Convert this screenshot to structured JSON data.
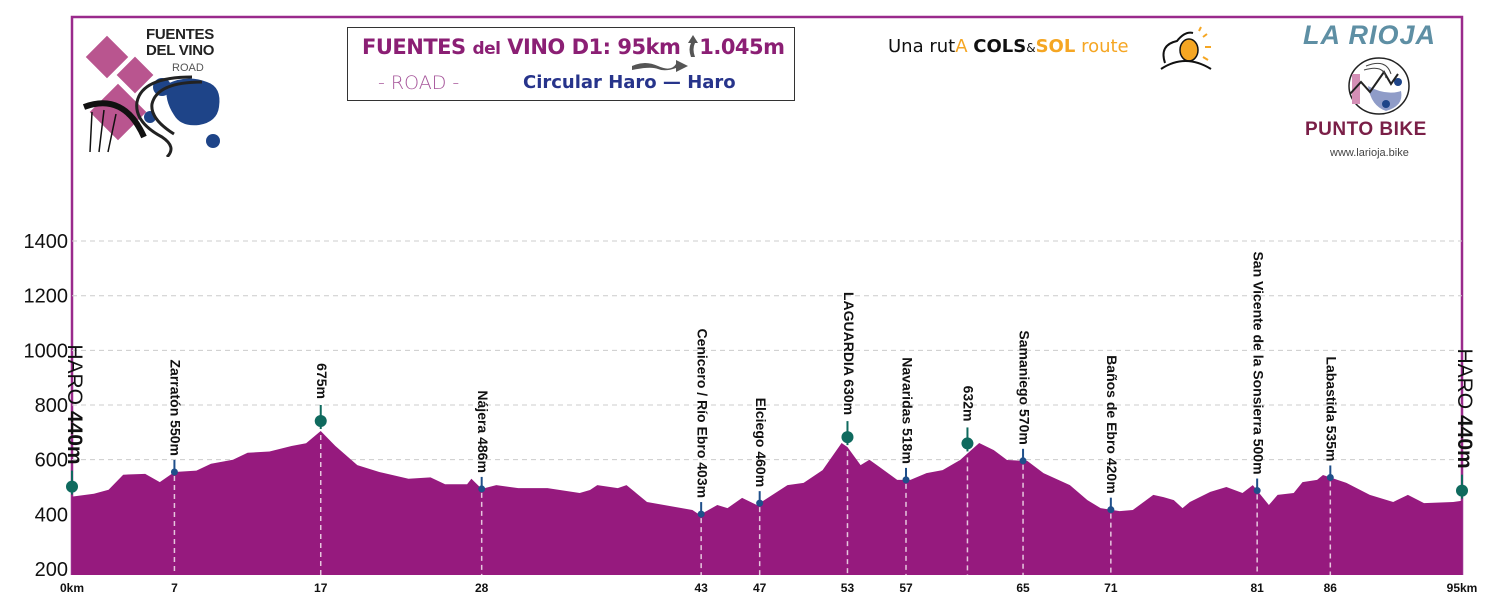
{
  "header": {
    "title_main": "FUENTES",
    "title_del": "del",
    "title_rest": "VINO D1: 95km",
    "title_climb": "1.045m",
    "subtitle_type": "- ROAD -",
    "subtitle_route": "Circular Haro — Haro",
    "icons": [
      "distance-arrow-icon",
      "climb-arrow-icon"
    ]
  },
  "logos": {
    "fuentes_line1": "FUENTES",
    "fuentes_line2": "DEL VINO",
    "fuentes_line3": "ROAD",
    "cols_prefix": "Una rut",
    "cols_a": "A",
    "cols_cols": "COLS",
    "cols_amp": "&",
    "cols_sol": "SOL",
    "cols_route": "route",
    "rioja": "LA RIOJA",
    "punto_bike": "PUNTO BIKE",
    "website": "www.larioja.bike"
  },
  "colors": {
    "fill": "#961a7e",
    "frame": "#9a2a8c",
    "big_marker": "#0f6a5e",
    "small_marker": "#1f4f8a",
    "grid": "#cccccc"
  },
  "chart_data": {
    "type": "area",
    "xlabel": "",
    "ylabel": "",
    "xlim": [
      0,
      95
    ],
    "ylim": [
      178,
      1500
    ],
    "yticks": [
      200,
      400,
      600,
      800,
      1000,
      1200,
      1400
    ],
    "grid": true,
    "xticks": [
      {
        "km": 0,
        "label": "0km"
      },
      {
        "km": 7,
        "label": "7"
      },
      {
        "km": 17,
        "label": "17"
      },
      {
        "km": 28,
        "label": "28"
      },
      {
        "km": 43,
        "label": "43"
      },
      {
        "km": 47,
        "label": "47"
      },
      {
        "km": 53,
        "label": "53"
      },
      {
        "km": 57,
        "label": "57"
      },
      {
        "km": 65,
        "label": "65"
      },
      {
        "km": 71,
        "label": "71"
      },
      {
        "km": 81,
        "label": "81"
      },
      {
        "km": 86,
        "label": "86"
      },
      {
        "km": 95,
        "label": "95km"
      }
    ],
    "profile": [
      [
        0,
        465
      ],
      [
        1.5,
        475
      ],
      [
        2.5,
        490
      ],
      [
        3.5,
        545
      ],
      [
        5,
        548
      ],
      [
        6,
        518
      ],
      [
        7,
        555
      ],
      [
        8.5,
        560
      ],
      [
        9.5,
        585
      ],
      [
        11,
        600
      ],
      [
        12,
        625
      ],
      [
        13.5,
        630
      ],
      [
        15,
        650
      ],
      [
        16,
        660
      ],
      [
        17,
        705
      ],
      [
        18,
        650
      ],
      [
        19.5,
        580
      ],
      [
        21,
        555
      ],
      [
        23,
        530
      ],
      [
        24.5,
        535
      ],
      [
        25.5,
        510
      ],
      [
        27,
        510
      ],
      [
        27.3,
        530
      ],
      [
        28,
        493
      ],
      [
        29,
        507
      ],
      [
        30.5,
        496
      ],
      [
        32.5,
        496
      ],
      [
        34.7,
        478
      ],
      [
        35.4,
        489
      ],
      [
        35.9,
        507
      ],
      [
        37.3,
        496
      ],
      [
        37.9,
        507
      ],
      [
        39.3,
        445
      ],
      [
        42.4,
        416
      ],
      [
        42.9,
        398
      ],
      [
        44.1,
        434
      ],
      [
        44.8,
        423
      ],
      [
        45.8,
        460
      ],
      [
        46.8,
        434
      ],
      [
        48.9,
        507
      ],
      [
        50,
        515
      ],
      [
        51.3,
        562
      ],
      [
        52.6,
        661
      ],
      [
        53,
        646
      ],
      [
        53.9,
        580
      ],
      [
        54.5,
        600
      ],
      [
        55.2,
        573
      ],
      [
        56.4,
        526
      ],
      [
        57.3,
        526
      ],
      [
        58.4,
        551
      ],
      [
        59.5,
        562
      ],
      [
        60.7,
        599
      ],
      [
        62,
        661
      ],
      [
        63,
        635
      ],
      [
        63.9,
        599
      ],
      [
        65.3,
        595
      ],
      [
        66.4,
        551
      ],
      [
        68.2,
        507
      ],
      [
        69.4,
        452
      ],
      [
        70.3,
        423
      ],
      [
        71.6,
        412
      ],
      [
        72.5,
        416
      ],
      [
        73.9,
        471
      ],
      [
        74.6,
        463
      ],
      [
        75.3,
        452
      ],
      [
        75.9,
        423
      ],
      [
        76.4,
        445
      ],
      [
        77.8,
        482
      ],
      [
        78.9,
        500
      ],
      [
        80,
        478
      ],
      [
        80.7,
        507
      ],
      [
        81.8,
        434
      ],
      [
        82.4,
        471
      ],
      [
        83.5,
        478
      ],
      [
        84.1,
        518
      ],
      [
        85.1,
        526
      ],
      [
        85.5,
        544
      ],
      [
        87.1,
        515
      ],
      [
        88.7,
        471
      ],
      [
        90.3,
        445
      ],
      [
        91.3,
        471
      ],
      [
        92.4,
        441
      ],
      [
        94.4,
        445
      ],
      [
        95,
        450
      ]
    ],
    "waypoints": [
      {
        "km": 0,
        "name": "HARO",
        "alt": "440m",
        "type": "big",
        "style": "haro"
      },
      {
        "km": 7,
        "name": "Zarratón 550m",
        "type": "small"
      },
      {
        "km": 17,
        "name": "675m",
        "type": "big"
      },
      {
        "km": 28,
        "name": "Nájera 486m",
        "type": "small"
      },
      {
        "km": 43,
        "name": "Cenicero / Río Ebro 403m",
        "type": "small"
      },
      {
        "km": 47,
        "name": "Elciego 460m",
        "type": "small"
      },
      {
        "km": 53,
        "name": "LAGUARDIA 630m",
        "type": "big"
      },
      {
        "km": 57,
        "name": "Navaridas 518m",
        "type": "small"
      },
      {
        "km": 61.2,
        "name": "632m",
        "type": "big"
      },
      {
        "km": 65,
        "name": "Samaniego 570m",
        "type": "small"
      },
      {
        "km": 71,
        "name": "Baños de Ebro 420m",
        "type": "small"
      },
      {
        "km": 81,
        "name": "San Vicente de la Sonsierra 500m",
        "type": "small"
      },
      {
        "km": 86,
        "name": "Labastida 535m",
        "type": "small"
      },
      {
        "km": 95,
        "name": "HARO",
        "alt": "440m",
        "type": "big",
        "style": "haro"
      }
    ]
  }
}
